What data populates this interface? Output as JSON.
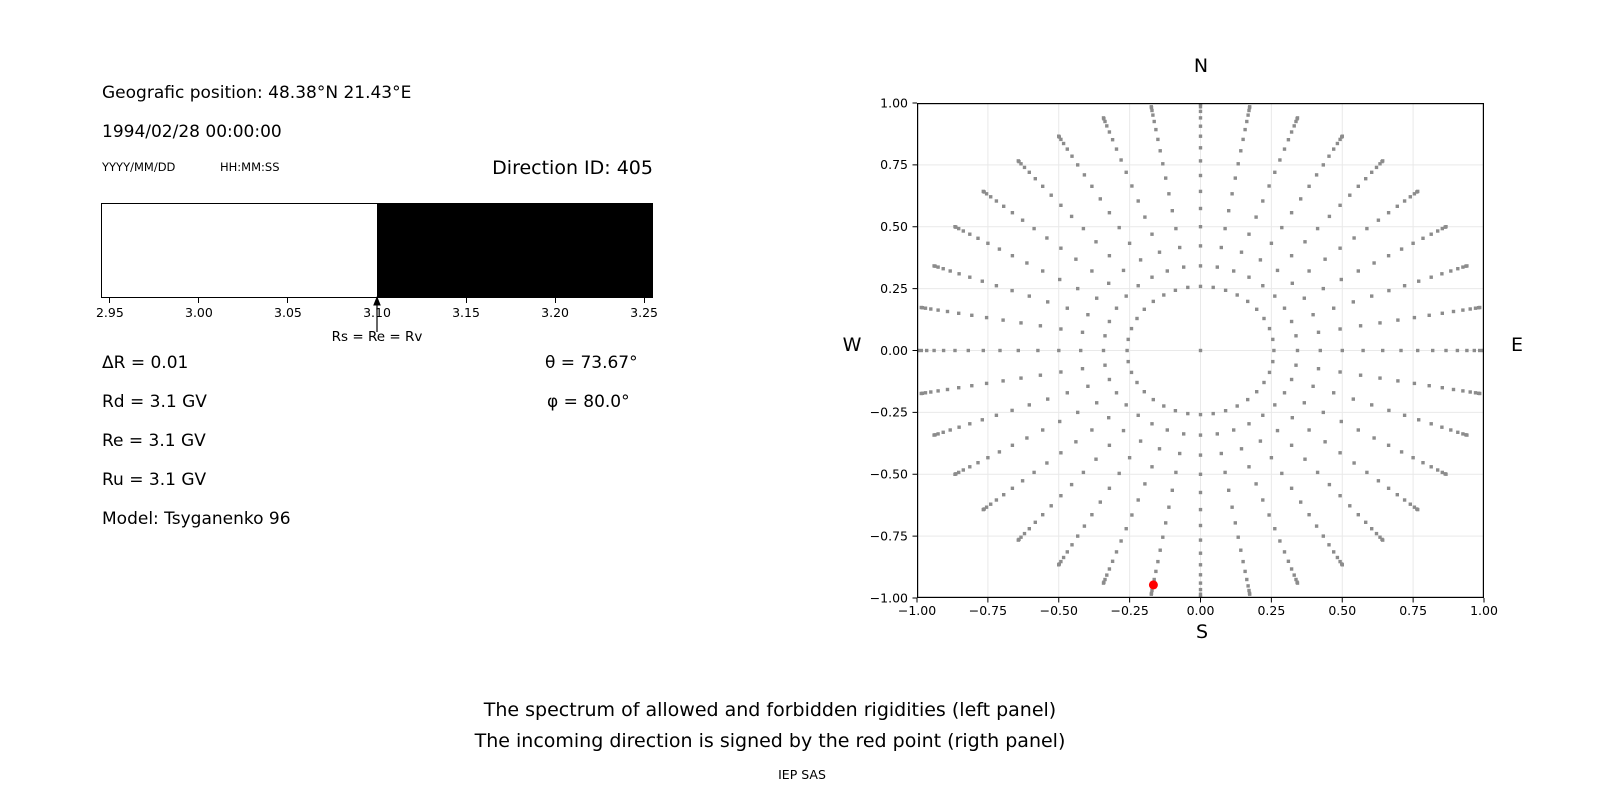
{
  "left_panel": {
    "geo_position": "Geografic position: 48.38°N 21.43°E",
    "datetime": "1994/02/28 00:00:00",
    "date_format_label": "YYYY/MM/DD",
    "time_format_label": "HH:MM:SS",
    "direction_id": "Direction ID: 405",
    "params_left": [
      "ΔR = 0.01",
      "Rd = 3.1 GV",
      "Re = 3.1 GV",
      "Ru = 3.1 GV",
      "Model: Tsyganenko 96"
    ],
    "params_right": [
      "θ = 73.67°",
      "φ = 80.0°"
    ]
  },
  "captions": {
    "line1": "The spectrum of allowed and forbidden rigidities (left panel)",
    "line2": "The incoming direction is signed by the red point (rigth panel)",
    "credit": "IEP SAS"
  },
  "chart_data": [
    {
      "id": "rigidity-spectrum",
      "type": "bar",
      "description": "Spectrum of allowed (white) and forbidden (black) rigidities",
      "xlim": [
        2.945,
        3.255
      ],
      "x_ticks": [
        2.95,
        3.0,
        3.05,
        3.1,
        3.15,
        3.2,
        3.25
      ],
      "x_unit": "GV",
      "allowed_range": [
        2.945,
        3.1
      ],
      "forbidden_range": [
        3.1,
        3.255
      ],
      "allowed_color": "#ffffff",
      "forbidden_color": "#000000",
      "annotation": {
        "label": "Rs = Re = Rv",
        "x": 3.1
      }
    },
    {
      "id": "incoming-direction-map",
      "type": "scatter",
      "description": "Sky map of viewing directions; grey dots form 36 azimuth spokes, red dot marks the incoming direction",
      "xlim": [
        -1,
        1
      ],
      "ylim": [
        -1,
        1
      ],
      "x_ticks": [
        -1.0,
        -0.75,
        -0.5,
        -0.25,
        0.0,
        0.25,
        0.5,
        0.75,
        1.0
      ],
      "y_ticks": [
        -1.0,
        -0.75,
        -0.5,
        -0.25,
        0.0,
        0.25,
        0.5,
        0.75,
        1.0
      ],
      "grid": true,
      "grid_color": "#e9e9e9",
      "compass": {
        "top": "N",
        "right": "E",
        "bottom": "S",
        "left": "W"
      },
      "direction_grid": {
        "azimuth_start_deg": 0,
        "azimuth_step_deg": 10,
        "azimuth_count": 36,
        "zenith_start_deg": 15,
        "zenith_step_deg": 5,
        "zenith_end_deg": 90,
        "radius_rule": "sin(zenith)",
        "include_center_point": true,
        "dot_color": "#8c8c8c"
      },
      "red_point": {
        "x": -0.166,
        "y": -0.947,
        "color": "#ff0000"
      }
    }
  ]
}
